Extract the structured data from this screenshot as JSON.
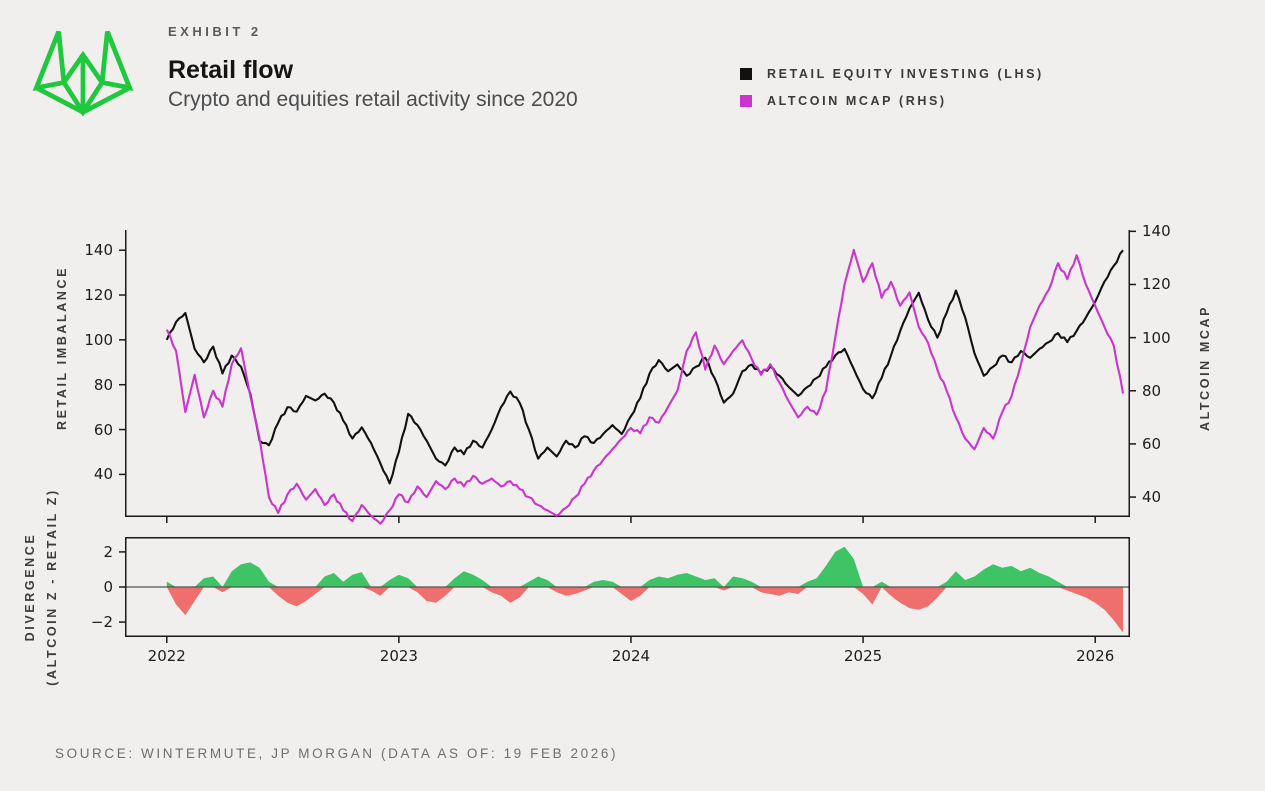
{
  "header": {
    "exhibit": "EXHIBIT 2",
    "title": "Retail flow",
    "subtitle": "Crypto and equities retail activity since 2020"
  },
  "brand": {
    "logo": "wintermute-mark",
    "green": "#1fc83c"
  },
  "legend": [
    {
      "label": "RETAIL EQUITY INVESTING (LHS)",
      "color": "#111111"
    },
    {
      "label": "ALTCOIN MCAP (RHS)",
      "color": "#cb34cf"
    }
  ],
  "footer": {
    "source": "SOURCE: WINTERMUTE, JP MORGAN (DATA AS OF: 19 FEB 2026)"
  },
  "chart_data": {
    "type": "line",
    "x": {
      "start": 2022.0,
      "step": 0.04,
      "ticks": [
        2022,
        2023,
        2024,
        2025,
        2026
      ],
      "xlim": [
        2021.82,
        2026.15
      ]
    },
    "styles": {
      "spine": "#1a1a1a",
      "zero_line": "#555555",
      "plot_bg": "#f0efed"
    },
    "panels": [
      {
        "name": "main",
        "ylabel_left": "RETAIL IMBALANCE",
        "ylabel_right": "ALTCOIN MCAP",
        "ylim_left": [
          21,
          149
        ],
        "ylim_right": [
          32.5,
          140.5
        ],
        "yticks": [
          40,
          60,
          80,
          100,
          120,
          140
        ],
        "series": [
          {
            "name": "RETAIL EQUITY INVESTING (LHS)",
            "axis": "left",
            "color": "#111111",
            "values": [
              100,
              108,
              112,
              96,
              90,
              97,
              85,
              93,
              88,
              76,
              55,
              53,
              63,
              70,
              68,
              75,
              73,
              76,
              72,
              64,
              56,
              61,
              54,
              45,
              36,
              50,
              67,
              62,
              55,
              47,
              44,
              52,
              49,
              55,
              52,
              60,
              70,
              77,
              72,
              60,
              47,
              52,
              48,
              55,
              52,
              57,
              54,
              58,
              62,
              58,
              66,
              74,
              85,
              91,
              86,
              89,
              84,
              88,
              92,
              83,
              72,
              76,
              86,
              89,
              85,
              88,
              84,
              79,
              75,
              79,
              83,
              88,
              93,
              96,
              87,
              78,
              74,
              83,
              93,
              104,
              114,
              121,
              109,
              101,
              112,
              122,
              110,
              94,
              84,
              88,
              93,
              90,
              95,
              92,
              96,
              99,
              103,
              99,
              104,
              110,
              117,
              126,
              133,
              140
            ]
          },
          {
            "name": "ALTCOIN MCAP (RHS)",
            "axis": "right",
            "color": "#cb34cf",
            "values": [
              103,
              95,
              72,
              86,
              70,
              80,
              74,
              90,
              96,
              78,
              62,
              40,
              34,
              41,
              45,
              39,
              43,
              37,
              41,
              35,
              31,
              37,
              33,
              30,
              35,
              41,
              38,
              44,
              40,
              46,
              43,
              47,
              44,
              48,
              45,
              47,
              44,
              46,
              43,
              40,
              37,
              35,
              33,
              36,
              40,
              45,
              50,
              54,
              58,
              62,
              66,
              64,
              70,
              68,
              74,
              80,
              95,
              102,
              88,
              97,
              90,
              95,
              99,
              92,
              86,
              90,
              83,
              76,
              70,
              74,
              71,
              80,
              100,
              120,
              133,
              121,
              128,
              115,
              121,
              112,
              117,
              104,
              98,
              88,
              80,
              70,
              62,
              58,
              66,
              62,
              72,
              78,
              90,
              104,
              112,
              118,
              128,
              122,
              131,
              120,
              112,
              104,
              97,
              79
            ]
          }
        ]
      },
      {
        "name": "divergence",
        "ylabel_line1": "DIVERGENCE",
        "ylabel_line2": "(ALTCOIN Z - RETAIL Z)",
        "ylim": [
          -2.85,
          2.85
        ],
        "yticks": [
          2,
          0,
          -2
        ],
        "series": [
          {
            "name": "ALTCOIN Z MINUS RETAIL Z",
            "type": "area",
            "positive_color": "#3ec464",
            "negative_color": "#ee6f6d",
            "values": [
              0.3,
              -1.0,
              -1.6,
              -0.8,
              0.5,
              0.6,
              -0.3,
              0.9,
              1.3,
              1.4,
              1.1,
              0.3,
              -0.5,
              -0.9,
              -1.1,
              -0.8,
              -0.4,
              0.6,
              0.8,
              0.3,
              0.7,
              0.85,
              -0.2,
              -0.5,
              0.4,
              0.7,
              0.5,
              -0.3,
              -0.8,
              -0.9,
              -0.5,
              0.5,
              0.9,
              0.7,
              0.4,
              -0.3,
              -0.5,
              -0.9,
              -0.6,
              0.3,
              0.6,
              0.4,
              -0.3,
              -0.5,
              -0.4,
              -0.2,
              0.3,
              0.4,
              0.3,
              -0.4,
              -0.8,
              -0.5,
              0.4,
              0.6,
              0.5,
              0.7,
              0.8,
              0.6,
              0.4,
              0.5,
              -0.2,
              0.6,
              0.5,
              0.3,
              -0.3,
              -0.4,
              -0.5,
              -0.3,
              -0.4,
              0.3,
              0.5,
              1.2,
              2.0,
              2.3,
              1.6,
              -0.4,
              -1.0,
              0.3,
              -0.5,
              -0.9,
              -1.2,
              -1.3,
              -1.1,
              -0.6,
              0.3,
              0.9,
              0.4,
              0.6,
              1.0,
              1.3,
              1.1,
              1.2,
              0.9,
              1.1,
              0.8,
              0.6,
              0.3,
              -0.2,
              -0.4,
              -0.6,
              -0.9,
              -1.3,
              -1.9,
              -2.6
            ]
          }
        ]
      }
    ]
  }
}
